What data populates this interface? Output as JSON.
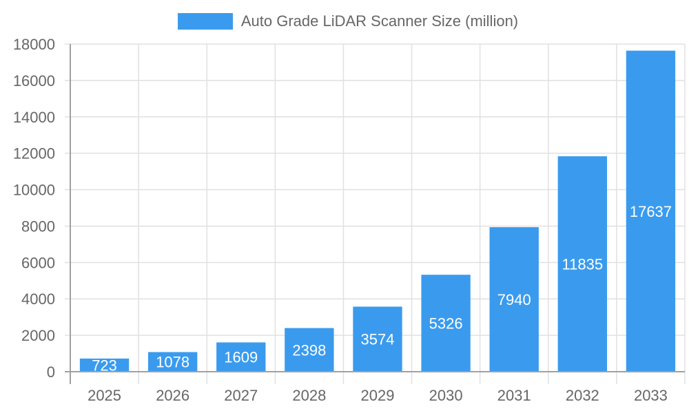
{
  "chart_data": {
    "type": "bar",
    "title": "",
    "legend": [
      {
        "label": "Auto Grade LiDAR Scanner Size (million)",
        "color": "#3a9bee"
      }
    ],
    "legend_position": "top",
    "categories": [
      "2025",
      "2026",
      "2027",
      "2028",
      "2029",
      "2030",
      "2031",
      "2032",
      "2033"
    ],
    "series": [
      {
        "name": "Auto Grade LiDAR Scanner Size (million)",
        "values": [
          723,
          1078,
          1609,
          2398,
          3574,
          5326,
          7940,
          11835,
          17637
        ]
      }
    ],
    "xlabel": "",
    "ylabel": "",
    "ylim": [
      0,
      18000
    ],
    "yticks": [
      0,
      2000,
      4000,
      6000,
      8000,
      10000,
      12000,
      14000,
      16000,
      18000
    ],
    "grid": true,
    "data_labels": true
  },
  "colors": {
    "bar": "#3a9bee",
    "grid": "#e0e0e0",
    "axis": "#a0a0a0",
    "text": "#666666",
    "label": "#ffffff"
  }
}
